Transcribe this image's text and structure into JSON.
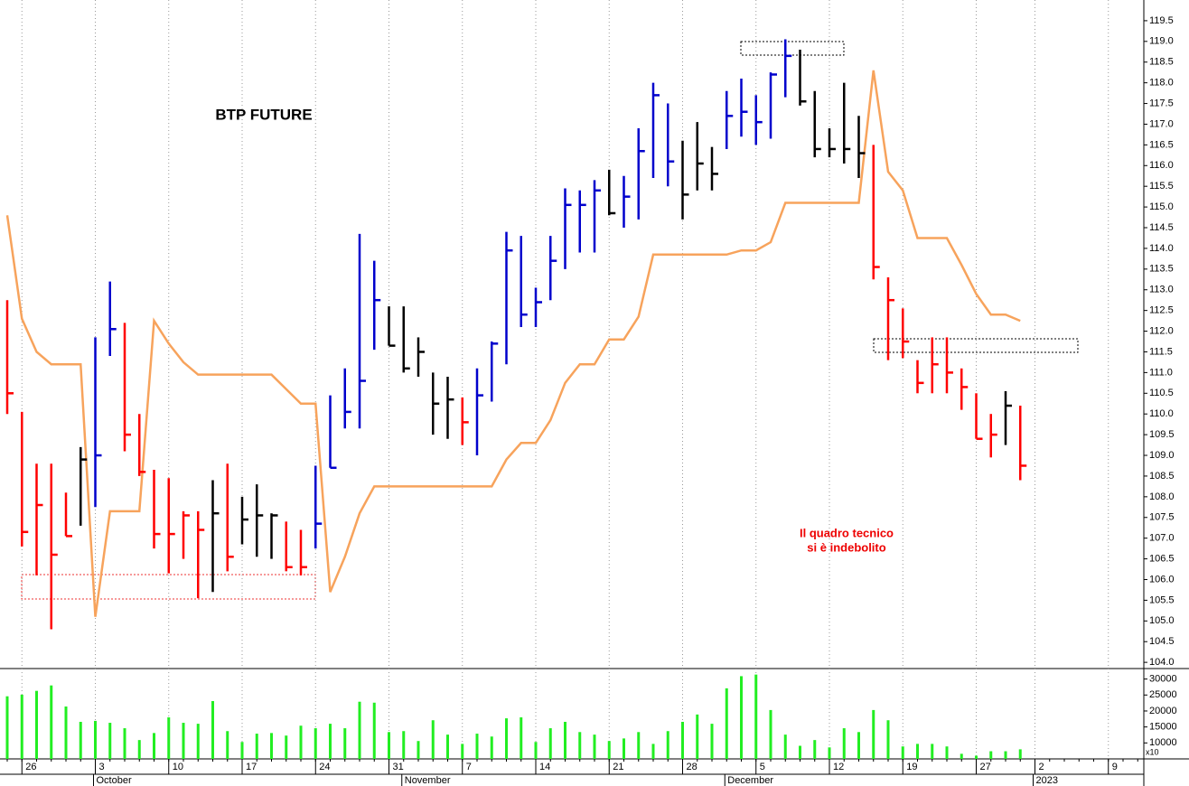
{
  "chart_data": {
    "type": "ohlc",
    "title": "BTP FUTURE",
    "annotation": [
      "Il quadro tecnico",
      "si è indebolito"
    ],
    "categories": [
      null,
      "26",
      null,
      null,
      null,
      null,
      "3",
      null,
      null,
      null,
      null,
      "10",
      null,
      null,
      null,
      null,
      "17",
      null,
      null,
      null,
      null,
      "24",
      null,
      null,
      null,
      null,
      "31",
      null,
      null,
      null,
      null,
      "7",
      null,
      null,
      null,
      null,
      "14",
      null,
      null,
      null,
      null,
      "21",
      null,
      null,
      null,
      null,
      "28",
      null,
      null,
      null,
      null,
      "5",
      null,
      null,
      null,
      null,
      "12",
      null,
      null,
      null,
      null,
      "19",
      null,
      null,
      null,
      null,
      "27",
      null,
      null,
      null,
      "2",
      null,
      null,
      null,
      null,
      "9",
      null,
      null
    ],
    "months": [
      null,
      null,
      null,
      null,
      null,
      null,
      "October",
      null,
      null,
      null,
      null,
      null,
      null,
      null,
      null,
      null,
      null,
      null,
      null,
      null,
      null,
      null,
      null,
      null,
      null,
      null,
      null,
      "November",
      null,
      null,
      null,
      null,
      null,
      null,
      null,
      null,
      null,
      null,
      null,
      null,
      null,
      null,
      null,
      null,
      null,
      null,
      null,
      null,
      null,
      "December",
      null,
      null,
      null,
      null,
      null,
      null,
      null,
      null,
      null,
      null,
      null,
      null,
      null,
      null,
      null,
      null,
      null,
      null,
      null,
      null,
      "2023",
      null,
      null,
      null,
      null,
      null,
      null,
      null
    ],
    "high": [
      112.75,
      110.05,
      108.8,
      108.8,
      108.1,
      109.2,
      111.85,
      113.2,
      112.2,
      110.0,
      108.65,
      108.45,
      107.65,
      107.65,
      108.4,
      108.8,
      108.0,
      108.3,
      107.6,
      107.4,
      107.2,
      108.75,
      110.45,
      111.1,
      114.35,
      113.7,
      112.6,
      112.6,
      111.85,
      111.0,
      110.9,
      110.4,
      111.1,
      111.75,
      114.4,
      114.3,
      113.05,
      114.3,
      115.45,
      115.4,
      115.65,
      115.9,
      115.75,
      116.9,
      118.0,
      117.5,
      116.6,
      117.05,
      116.45,
      117.8,
      118.1,
      117.7,
      118.25,
      119.05,
      118.8,
      117.8,
      116.9,
      118.0,
      117.2,
      116.5,
      113.3,
      112.55,
      111.3,
      111.85,
      111.85,
      111.1,
      110.5,
      110.0,
      110.55,
      110.2,
      null,
      null,
      null,
      null,
      null,
      null,
      null,
      null
    ],
    "low": [
      110.0,
      106.8,
      106.1,
      104.8,
      107.05,
      107.3,
      107.75,
      111.4,
      109.1,
      108.5,
      106.75,
      106.15,
      106.5,
      105.55,
      105.7,
      106.2,
      106.85,
      106.55,
      106.5,
      106.2,
      106.1,
      106.75,
      108.7,
      109.65,
      109.65,
      111.55,
      111.65,
      111.0,
      110.9,
      109.5,
      109.4,
      109.25,
      109.0,
      110.3,
      111.2,
      112.1,
      112.1,
      112.75,
      113.5,
      113.9,
      113.9,
      114.8,
      114.5,
      114.7,
      115.7,
      115.5,
      114.7,
      115.4,
      115.4,
      116.4,
      116.7,
      116.5,
      116.65,
      117.65,
      117.45,
      116.2,
      116.2,
      116.05,
      115.7,
      113.25,
      111.3,
      111.35,
      110.5,
      110.5,
      110.5,
      110.1,
      109.4,
      108.95,
      109.25,
      108.4,
      null,
      null,
      null,
      null,
      null,
      null,
      null,
      null
    ],
    "close": [
      110.5,
      107.15,
      107.8,
      106.6,
      107.05,
      108.9,
      109.0,
      112.05,
      109.5,
      108.6,
      107.1,
      107.1,
      107.55,
      107.2,
      107.6,
      106.55,
      107.45,
      107.55,
      107.55,
      106.3,
      106.3,
      107.35,
      108.7,
      110.05,
      110.8,
      112.75,
      111.65,
      111.1,
      111.5,
      110.25,
      110.35,
      109.8,
      110.45,
      111.7,
      113.95,
      112.4,
      112.7,
      113.7,
      115.05,
      115.05,
      115.4,
      114.85,
      115.25,
      116.35,
      117.7,
      116.1,
      115.3,
      116.05,
      115.8,
      117.2,
      117.3,
      117.05,
      118.2,
      118.65,
      117.55,
      116.4,
      116.4,
      116.4,
      116.3,
      113.55,
      112.75,
      111.75,
      110.75,
      111.2,
      111.0,
      110.65,
      109.4,
      109.5,
      110.2,
      108.75,
      null,
      null,
      null,
      null,
      null,
      null,
      null,
      null
    ],
    "bar_colors": [
      "#ff0000",
      "#ff0000",
      "#ff0000",
      "#ff0000",
      "#ff0000",
      "#000000",
      "#0000cc",
      "#0000cc",
      "#ff0000",
      "#ff0000",
      "#ff0000",
      "#ff0000",
      "#ff0000",
      "#ff0000",
      "#000000",
      "#ff0000",
      "#000000",
      "#000000",
      "#000000",
      "#ff0000",
      "#ff0000",
      "#0000cc",
      "#0000cc",
      "#0000cc",
      "#0000cc",
      "#0000cc",
      "#000000",
      "#000000",
      "#000000",
      "#000000",
      "#000000",
      "#ff0000",
      "#0000cc",
      "#0000cc",
      "#0000cc",
      "#0000cc",
      "#0000cc",
      "#0000cc",
      "#0000cc",
      "#0000cc",
      "#0000cc",
      "#000000",
      "#0000cc",
      "#0000cc",
      "#0000cc",
      "#0000cc",
      "#000000",
      "#000000",
      "#000000",
      "#0000cc",
      "#0000cc",
      "#0000cc",
      "#0000cc",
      "#0000cc",
      "#000000",
      "#000000",
      "#000000",
      "#000000",
      "#000000",
      "#ff0000",
      "#ff0000",
      "#ff0000",
      "#ff0000",
      "#ff0000",
      "#ff0000",
      "#ff0000",
      "#ff0000",
      "#ff0000",
      "#000000",
      "#ff0000",
      null,
      null,
      null,
      null,
      null,
      null,
      null,
      null
    ],
    "line": {
      "color": "#f7a35c",
      "values": [
        114.8,
        112.3,
        111.5,
        111.2,
        111.2,
        111.2,
        105.1,
        107.65,
        107.65,
        107.65,
        112.25,
        111.7,
        111.25,
        110.95,
        110.95,
        110.95,
        110.95,
        110.95,
        110.95,
        110.6,
        110.25,
        110.25,
        105.7,
        106.55,
        107.6,
        108.25,
        108.25,
        108.25,
        108.25,
        108.25,
        108.25,
        108.25,
        108.25,
        108.25,
        108.9,
        109.3,
        109.3,
        109.85,
        110.75,
        111.2,
        111.2,
        111.8,
        111.8,
        112.35,
        113.85,
        113.85,
        113.85,
        113.85,
        113.85,
        113.85,
        113.95,
        113.95,
        114.15,
        115.1,
        115.1,
        115.1,
        115.1,
        115.1,
        115.1,
        118.3,
        115.85,
        115.4,
        114.25,
        114.25,
        114.25,
        113.6,
        112.9,
        112.4,
        112.4,
        112.25,
        null,
        null,
        null,
        null,
        null,
        null,
        null,
        null
      ]
    },
    "ylim": [
      103.85,
      120
    ],
    "yticks": [
      {
        "value": 104,
        "label": "104.0"
      },
      {
        "value": 104.5,
        "label": "104.5"
      },
      {
        "value": 105,
        "label": "105.0"
      },
      {
        "value": 105.5,
        "label": "105.5"
      },
      {
        "value": 106,
        "label": "106.0"
      },
      {
        "value": 106.5,
        "label": "106.5"
      },
      {
        "value": 107,
        "label": "107.0"
      },
      {
        "value": 107.5,
        "label": "107.5"
      },
      {
        "value": 108,
        "label": "108.0"
      },
      {
        "value": 108.5,
        "label": "108.5"
      },
      {
        "value": 109,
        "label": "109.0"
      },
      {
        "value": 109.5,
        "label": "109.5"
      },
      {
        "value": 110,
        "label": "110.0"
      },
      {
        "value": 110.5,
        "label": "110.5"
      },
      {
        "value": 111,
        "label": "111.0"
      },
      {
        "value": 111.5,
        "label": "111.5"
      },
      {
        "value": 112,
        "label": "112.0"
      },
      {
        "value": 112.5,
        "label": "112.5"
      },
      {
        "value": 113,
        "label": "113.0"
      },
      {
        "value": 113.5,
        "label": "113.5"
      },
      {
        "value": 114,
        "label": "114.0"
      },
      {
        "value": 114.5,
        "label": "114.5"
      },
      {
        "value": 115,
        "label": "115.0"
      },
      {
        "value": 115.5,
        "label": "115.5"
      },
      {
        "value": 116,
        "label": "116.0"
      },
      {
        "value": 116.5,
        "label": "116.5"
      },
      {
        "value": 117,
        "label": "117.0"
      },
      {
        "value": 117.5,
        "label": "117.5"
      },
      {
        "value": 118,
        "label": "118.0"
      },
      {
        "value": 118.5,
        "label": "118.5"
      },
      {
        "value": 119,
        "label": "119.0"
      },
      {
        "value": 119.5,
        "label": "119.5"
      }
    ],
    "volume": {
      "color": "#22ee22",
      "unit_label": "x10",
      "values": [
        24600,
        25100,
        26300,
        28000,
        21400,
        16600,
        16900,
        16300,
        14600,
        10900,
        13100,
        18000,
        16300,
        16000,
        23100,
        13700,
        10300,
        12900,
        13100,
        12300,
        15400,
        14600,
        16000,
        14600,
        22900,
        22600,
        13400,
        13700,
        10600,
        17100,
        12600,
        9700,
        12900,
        12000,
        17700,
        18000,
        10300,
        14600,
        16600,
        13400,
        12600,
        10600,
        11400,
        13400,
        9700,
        13700,
        16600,
        18900,
        16000,
        27100,
        30900,
        31400,
        20300,
        12600,
        9100,
        10900,
        8600,
        14600,
        13400,
        20300,
        17100,
        8900,
        9700,
        9700,
        8900,
        6600,
        6000,
        7400,
        7400,
        8000,
        null,
        null,
        null,
        null,
        null,
        null,
        null,
        null
      ],
      "ylim": [
        5000,
        33000
      ],
      "yticks": [
        10000,
        15000,
        20000,
        25000,
        30000
      ]
    }
  }
}
